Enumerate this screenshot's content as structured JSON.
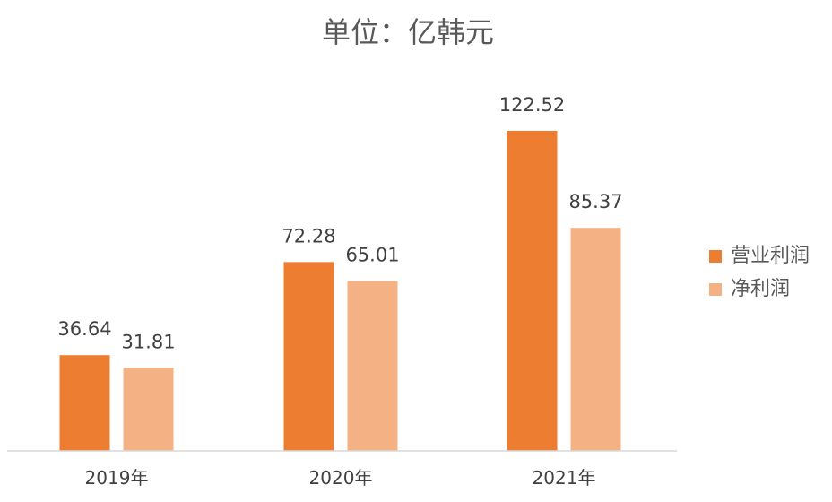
{
  "chart_data": {
    "type": "bar",
    "title": "单位：亿韩元",
    "categories": [
      "2019年",
      "2020年",
      "2021年"
    ],
    "series": [
      {
        "name": "营业利润",
        "values": [
          36.64,
          72.28,
          122.52
        ],
        "color": "#ED7D31"
      },
      {
        "name": "净利润",
        "values": [
          31.81,
          65.01,
          85.37
        ],
        "color": "#F4B183"
      }
    ],
    "ylim": [
      0,
      140
    ],
    "grid": false,
    "legend": "right",
    "axis_color": "#D9D9D9"
  }
}
